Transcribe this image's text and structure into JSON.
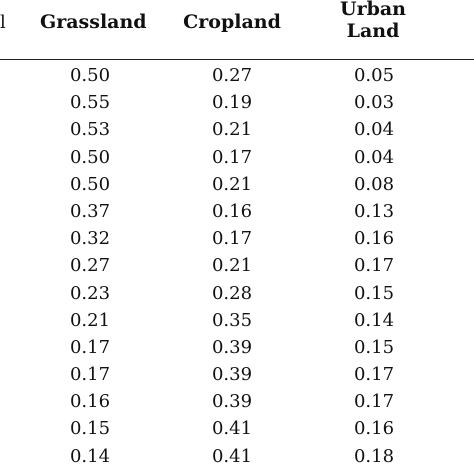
{
  "table": {
    "cut_header": "l",
    "headers": [
      "Grassland",
      "Cropland",
      [
        "Urban",
        "Land"
      ]
    ],
    "rows": [
      [
        "0.50",
        "0.27",
        "0.05"
      ],
      [
        "0.55",
        "0.19",
        "0.03"
      ],
      [
        "0.53",
        "0.21",
        "0.04"
      ],
      [
        "0.50",
        "0.17",
        "0.04"
      ],
      [
        "0.50",
        "0.21",
        "0.08"
      ],
      [
        "0.37",
        "0.16",
        "0.13"
      ],
      [
        "0.32",
        "0.17",
        "0.16"
      ],
      [
        "0.27",
        "0.21",
        "0.17"
      ],
      [
        "0.23",
        "0.28",
        "0.15"
      ],
      [
        "0.21",
        "0.35",
        "0.14"
      ],
      [
        "0.17",
        "0.39",
        "0.15"
      ],
      [
        "0.17",
        "0.39",
        "0.17"
      ],
      [
        "0.16",
        "0.39",
        "0.17"
      ],
      [
        "0.15",
        "0.41",
        "0.16"
      ],
      [
        "0.14",
        "0.41",
        "0.18"
      ]
    ]
  }
}
